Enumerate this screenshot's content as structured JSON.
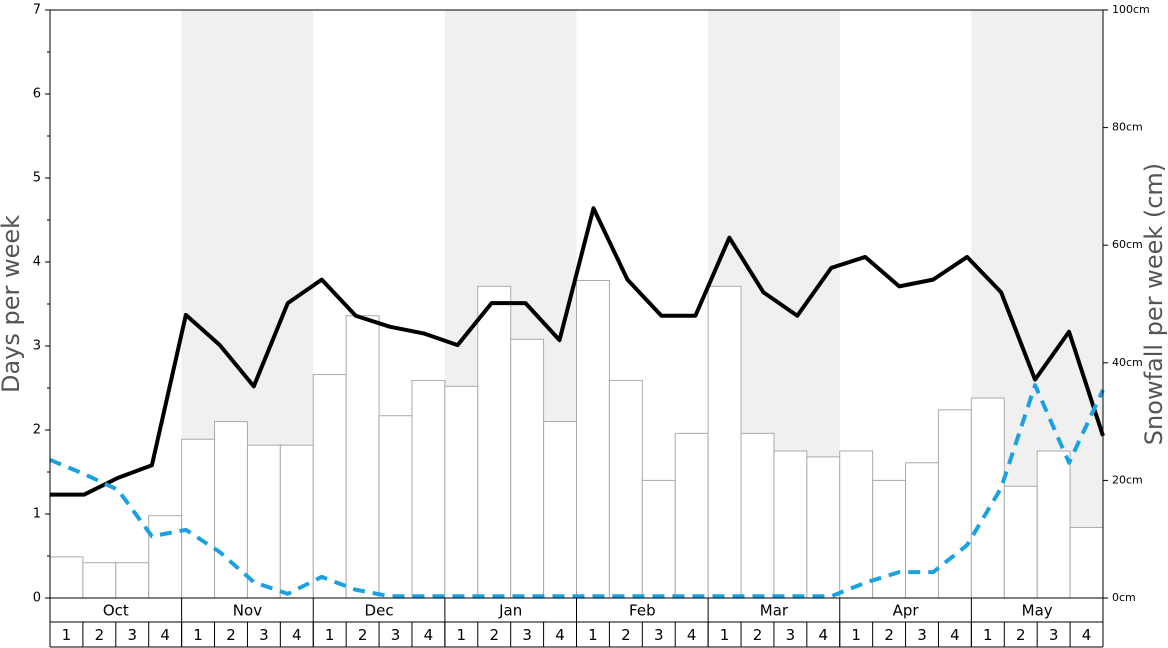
{
  "chart_data": {
    "type": "bar",
    "ylabel": "Days per week",
    "y2label": "Snowfall per week (cm)",
    "months": [
      "Oct",
      "Nov",
      "Dec",
      "Jan",
      "Feb",
      "Mar",
      "Apr",
      "May"
    ],
    "categories": [
      "1",
      "2",
      "3",
      "4",
      "1",
      "2",
      "3",
      "4",
      "1",
      "2",
      "3",
      "4",
      "1",
      "2",
      "3",
      "4",
      "1",
      "2",
      "3",
      "4",
      "1",
      "2",
      "3",
      "4",
      "1",
      "2",
      "3",
      "4",
      "1",
      "2",
      "3",
      "4"
    ],
    "ylim": [
      0,
      7
    ],
    "yticks": [
      0,
      1,
      2,
      3,
      4,
      5,
      6,
      7
    ],
    "y2lim": [
      0,
      100
    ],
    "y2ticks": [
      {
        "value": 0,
        "label": "0cm"
      },
      {
        "value": 20,
        "label": "20cm"
      },
      {
        "value": 40,
        "label": "40cm"
      },
      {
        "value": 60,
        "label": "60cm"
      },
      {
        "value": 80,
        "label": "80cm"
      },
      {
        "value": 100,
        "label": "100cm"
      }
    ],
    "series": [
      {
        "type": "bar",
        "axis": "y2",
        "color": "#ffffff",
        "values": [
          7,
          6,
          6,
          14,
          27,
          30,
          26,
          26,
          38,
          48,
          31,
          37,
          36,
          53,
          44,
          30,
          54,
          37,
          20,
          28,
          53,
          28,
          25,
          24,
          25,
          20,
          23,
          32,
          34,
          19,
          25,
          12
        ]
      },
      {
        "type": "line",
        "axis": "y",
        "color": "#000000",
        "values": [
          1.23,
          1.23,
          1.43,
          1.58,
          3.37,
          3.01,
          2.52,
          3.51,
          3.79,
          3.36,
          3.23,
          3.15,
          3.01,
          3.51,
          3.51,
          3.07,
          4.64,
          3.79,
          3.36,
          3.36,
          4.29,
          3.64,
          3.36,
          3.93,
          4.06,
          3.71,
          3.79,
          4.06,
          3.64,
          2.6,
          3.17,
          1.93
        ]
      },
      {
        "type": "line",
        "axis": "y2",
        "color": "#1ba1e2",
        "dashed": true,
        "values": [
          23.5,
          21.1,
          18.4,
          10.5,
          11.6,
          7.8,
          2.7,
          0.7,
          3.6,
          1.4,
          0.3,
          0.3,
          0.3,
          0.3,
          0.3,
          0.3,
          0.3,
          0.3,
          0.3,
          0.3,
          0.3,
          0.3,
          0.3,
          0.3,
          2.6,
          4.4,
          4.4,
          9.0,
          18.7,
          36.2,
          23.0,
          35.4
        ]
      }
    ]
  }
}
